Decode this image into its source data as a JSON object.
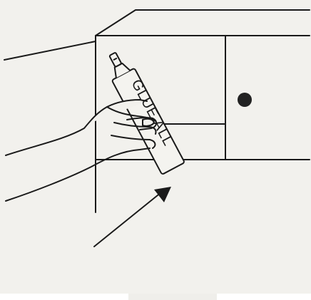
{
  "illustration": {
    "tube_label": "GLUE ALL",
    "colors": {
      "background": "#f2f1ed",
      "ink": "#1a1a1a",
      "tube_fill": "#f4f3ef",
      "knob": "#222222"
    },
    "icons": [
      "hand-icon",
      "glue-tube-icon",
      "arrow-icon",
      "cabinet-knob-icon"
    ]
  }
}
